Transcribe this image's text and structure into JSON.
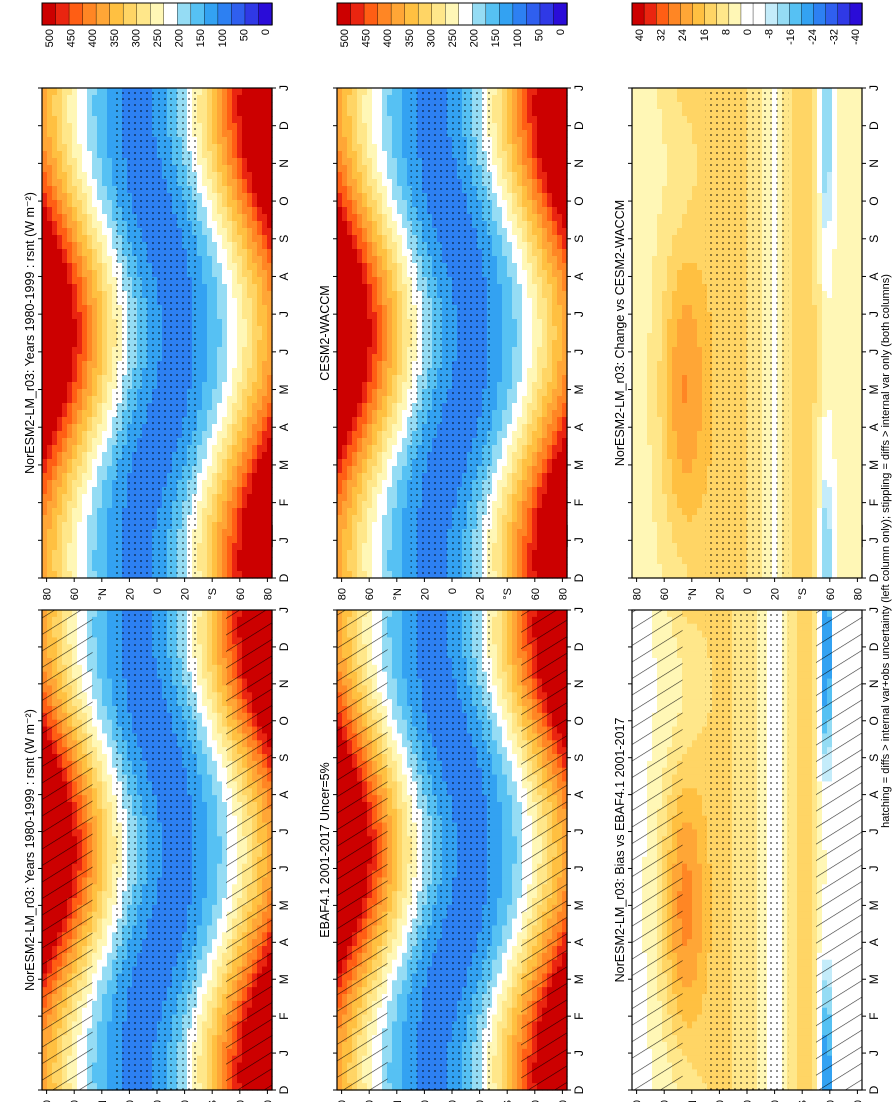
{
  "figure": {
    "footer_note": "hatching = diffs > internal var+obs uncertainty (left column only); stippling = diffs > internal var only (both columns)"
  },
  "palettes": {
    "absolute": [
      "#2a0cd8",
      "#2f39e6",
      "#2f5fef",
      "#2d80f2",
      "#33a2f2",
      "#56c1f3",
      "#95dcf4",
      "#ffffff",
      "#fff7b6",
      "#ffe78a",
      "#ffd565",
      "#ffc041",
      "#ffa636",
      "#ff8624",
      "#ff5e14",
      "#ea2510",
      "#cc0000"
    ],
    "difference": [
      "#2a0cd8",
      "#2f39e6",
      "#2f5fef",
      "#2d80f2",
      "#33a2f2",
      "#56c1f3",
      "#95dcf4",
      "#c4ecfa",
      "#ffffff",
      "#ffffff",
      "#fff7b6",
      "#ffe78a",
      "#ffd565",
      "#ffc041",
      "#ffa636",
      "#ff8624",
      "#ff5e14",
      "#ea2510",
      "#cc0000"
    ]
  },
  "chart_data": [
    {
      "type": "heatmap",
      "panel": "top-left",
      "title": "NorESM2-LM_r03: Years 1980-1999 : rsnt (W m⁻²)",
      "x": [
        "D",
        "J",
        "F",
        "M",
        "A",
        "M",
        "J",
        "J",
        "A",
        "S",
        "O",
        "N",
        "D",
        "J"
      ],
      "y_ticks": [
        "80",
        "60",
        "°N",
        "20",
        "0",
        "20",
        "°S",
        "60",
        "80"
      ],
      "colorbar": {
        "ticks": [
          "500",
          "450",
          "400",
          "350",
          "300",
          "250",
          "200",
          "150",
          "100",
          "50",
          "0"
        ],
        "palette": "absolute"
      },
      "field": "insolation",
      "hatching": true,
      "stippling": true
    },
    {
      "type": "heatmap",
      "panel": "top-right",
      "title": "NorESM2-LM_r03: Years 1980-1999 : rsnt (W m⁻²)",
      "x": [
        "D",
        "J",
        "F",
        "M",
        "A",
        "M",
        "J",
        "J",
        "A",
        "S",
        "O",
        "N",
        "D",
        "J"
      ],
      "y_ticks": [
        "80",
        "60",
        "°N",
        "20",
        "0",
        "20",
        "°S",
        "60",
        "80"
      ],
      "colorbar": {
        "ticks": [
          "500",
          "450",
          "400",
          "350",
          "300",
          "250",
          "200",
          "150",
          "100",
          "50",
          "0"
        ],
        "palette": "absolute"
      },
      "field": "insolation",
      "hatching": false,
      "stippling": true
    },
    {
      "type": "heatmap",
      "panel": "middle-left",
      "title": "EBAF4.1 2001-2017 Uncer=5%",
      "x": [
        "D",
        "J",
        "F",
        "M",
        "A",
        "M",
        "J",
        "J",
        "A",
        "S",
        "O",
        "N",
        "D",
        "J"
      ],
      "y_ticks": [
        "80",
        "60",
        "°N",
        "20",
        "0",
        "20",
        "°S",
        "60",
        "80"
      ],
      "colorbar": {
        "ticks": [
          "500",
          "450",
          "400",
          "350",
          "300",
          "250",
          "200",
          "150",
          "100",
          "50",
          "0"
        ],
        "palette": "absolute"
      },
      "field": "insolation",
      "hatching": true,
      "stippling": true
    },
    {
      "type": "heatmap",
      "panel": "middle-right",
      "title": "CESM2-WACCM",
      "x": [
        "D",
        "J",
        "F",
        "M",
        "A",
        "M",
        "J",
        "J",
        "A",
        "S",
        "O",
        "N",
        "D",
        "J"
      ],
      "y_ticks": [
        "80",
        "60",
        "°N",
        "20",
        "0",
        "20",
        "°S",
        "60",
        "80"
      ],
      "colorbar": {
        "ticks": [
          "500",
          "450",
          "400",
          "350",
          "300",
          "250",
          "200",
          "150",
          "100",
          "50",
          "0"
        ],
        "palette": "absolute"
      },
      "field": "insolation",
      "hatching": false,
      "stippling": true
    },
    {
      "type": "heatmap",
      "panel": "bottom-left",
      "title": "NorESM2-LM_r03: Bias vs EBAF4.1 2001-2017",
      "x": [
        "D",
        "J",
        "F",
        "M",
        "A",
        "M",
        "J",
        "J",
        "A",
        "S",
        "O",
        "N",
        "D",
        "J"
      ],
      "y_ticks": [
        "80",
        "60",
        "°N",
        "20",
        "0",
        "20",
        "°S",
        "60",
        "80"
      ],
      "colorbar": {
        "ticks": [
          "40",
          "32",
          "24",
          "16",
          "8",
          "0",
          "-8",
          "-16",
          "-24",
          "-32",
          "-40"
        ],
        "palette": "difference"
      },
      "field": "bias",
      "hatching": true,
      "stippling": true
    },
    {
      "type": "heatmap",
      "panel": "bottom-right",
      "title": "NorESM2-LM_r03: Change vs CESM2-WACCM",
      "x": [
        "D",
        "J",
        "F",
        "M",
        "A",
        "M",
        "J",
        "J",
        "A",
        "S",
        "O",
        "N",
        "D",
        "J"
      ],
      "y_ticks": [
        "80",
        "60",
        "°N",
        "20",
        "0",
        "20",
        "°S",
        "60",
        "80"
      ],
      "colorbar": {
        "ticks": [
          "40",
          "32",
          "24",
          "16",
          "8",
          "0",
          "-8",
          "-16",
          "-24",
          "-32",
          "-40"
        ],
        "palette": "difference"
      },
      "field": "change",
      "hatching": false,
      "stippling": true
    }
  ]
}
